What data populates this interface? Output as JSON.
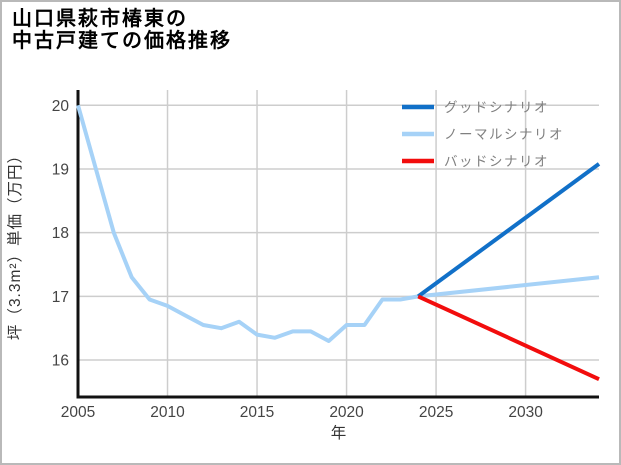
{
  "page": {
    "title_lines": [
      "山口県萩市椿東の",
      "中古戸建ての価格推移"
    ]
  },
  "chart_data": {
    "type": "line",
    "title": "山口県萩市椿東の中古戸建ての価格推移",
    "xlabel": "年",
    "ylabel": "坪（3.3m²）単価（万円）",
    "x_ticks": [
      2005,
      2010,
      2015,
      2020,
      2025,
      2030
    ],
    "y_ticks": [
      16,
      17,
      18,
      19,
      20
    ],
    "xlim": [
      2005,
      2034.1
    ],
    "ylim": [
      15.42,
      20.24
    ],
    "grid": true,
    "legend_position": "top-right",
    "colors": {
      "good": "#1170c8",
      "normal": "#a6d2f7",
      "bad": "#f20d0d",
      "grid": "#cdcdcd",
      "axis": "#111111",
      "tick_label": "#444444",
      "axis_label": "#333333",
      "legend_text": "#808080"
    },
    "series": [
      {
        "name": "グッドシナリオ",
        "color": "#1170c8",
        "x": [
          2024,
          2034.1
        ],
        "y": [
          17.0,
          19.08
        ]
      },
      {
        "name": "ノーマルシナリオ",
        "color": "#a6d2f7",
        "x": [
          2005,
          2006,
          2007,
          2008,
          2009,
          2010,
          2011,
          2012,
          2013,
          2014,
          2015,
          2016,
          2017,
          2018,
          2019,
          2020,
          2021,
          2022,
          2023,
          2024,
          2034.1
        ],
        "y": [
          20.0,
          19.0,
          18.0,
          17.3,
          16.95,
          16.85,
          16.7,
          16.55,
          16.5,
          16.6,
          16.4,
          16.35,
          16.45,
          16.45,
          16.3,
          16.55,
          16.55,
          16.95,
          16.95,
          17.0,
          17.3
        ]
      },
      {
        "name": "バッドシナリオ",
        "color": "#f20d0d",
        "x": [
          2024,
          2034.1
        ],
        "y": [
          17.0,
          15.7
        ]
      }
    ]
  }
}
